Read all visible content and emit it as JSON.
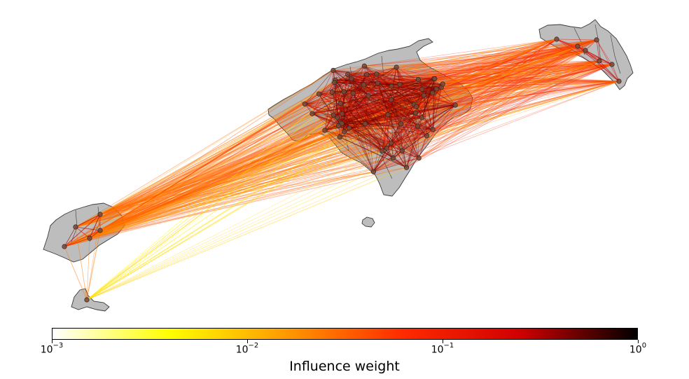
{
  "colorbar": {
    "label": "Influence weight",
    "scale": "log",
    "range": [
      0.001,
      1
    ],
    "colormap": "hot_r",
    "colors": [
      "#ffffff",
      "#ffff00",
      "#ff9900",
      "#ff2a00",
      "#d00000",
      "#000000"
    ],
    "ticks": [
      {
        "base": "10",
        "exp": "−3",
        "value": 0.001
      },
      {
        "base": "10",
        "exp": "−2",
        "value": 0.01
      },
      {
        "base": "10",
        "exp": "−1",
        "value": 0.1
      },
      {
        "base": "10",
        "exp": "0",
        "value": 1
      }
    ]
  },
  "map": {
    "islands": [
      "Mallorca",
      "Menorca",
      "Ibiza",
      "Formentera",
      "Cabrera"
    ],
    "land_color": "#bdbdbd",
    "border_color": "#3a3a3a",
    "node_color": "#7a4a3a"
  }
}
